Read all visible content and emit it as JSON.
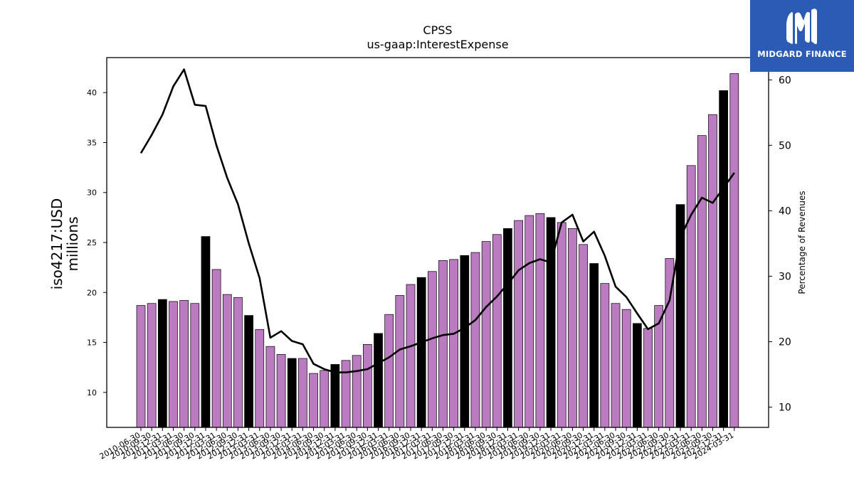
{
  "header": {
    "title": "CPSS",
    "subtitle": "us-gaap:InterestExpense"
  },
  "logo": {
    "text": "MIDGARD FINANCE",
    "icon": "midgard-m-logo-icon",
    "background": "#2b5bb5"
  },
  "colors": {
    "bar_default": "#bb7bc0",
    "bar_highlight": "#000000",
    "line": "#000000"
  },
  "chart_data": {
    "type": "bar",
    "title": "CPSS",
    "subtitle": "us-gaap:InterestExpense",
    "ylabel": "iso4217:USD\nmillions",
    "y2label": "Percentage of Revenues",
    "ylim": [
      6.5,
      43.5
    ],
    "y2lim": [
      6.9,
      63.4
    ],
    "yticks": [
      10,
      15,
      20,
      25,
      30,
      35,
      40
    ],
    "y2ticks": [
      10,
      20,
      30,
      40,
      50,
      60
    ],
    "categories": [
      "2010-06-30",
      "2010-09-30",
      "2010-12-31",
      "2011-03-31",
      "2011-06-30",
      "2011-09-30",
      "2011-12-31",
      "2012-03-31",
      "2012-06-30",
      "2012-09-30",
      "2012-12-31",
      "2013-03-31",
      "2013-06-30",
      "2013-09-30",
      "2013-12-31",
      "2014-03-31",
      "2014-06-30",
      "2014-09-30",
      "2014-12-31",
      "2015-03-31",
      "2015-06-30",
      "2015-09-30",
      "2015-12-31",
      "2016-03-31",
      "2016-06-30",
      "2016-09-30",
      "2016-12-31",
      "2017-03-31",
      "2017-06-30",
      "2017-09-30",
      "2017-12-31",
      "2018-03-31",
      "2018-06-30",
      "2018-09-30",
      "2018-12-31",
      "2019-03-31",
      "2019-06-30",
      "2019-09-30",
      "2019-12-31",
      "2020-03-31",
      "2020-06-30",
      "2020-09-30",
      "2020-12-31",
      "2021-03-31",
      "2021-06-30",
      "2021-09-30",
      "2021-12-31",
      "2022-03-31",
      "2022-06-30",
      "2022-09-30",
      "2022-12-31",
      "2023-03-31",
      "2023-06-30",
      "2023-09-30",
      "2023-12-31",
      "2024-03-31"
    ],
    "series": [
      {
        "type": "bar",
        "values": [
          18.7,
          18.9,
          19.3,
          19.1,
          19.2,
          18.9,
          25.6,
          22.3,
          19.8,
          19.5,
          17.7,
          16.3,
          14.6,
          13.8,
          13.4,
          13.4,
          11.9,
          12.2,
          12.8,
          13.2,
          13.7,
          14.8,
          15.9,
          17.8,
          19.7,
          20.8,
          21.5,
          22.1,
          23.2,
          23.3,
          23.7,
          24.0,
          25.1,
          25.8,
          26.4,
          27.2,
          27.7,
          27.9,
          27.5,
          27.0,
          26.4,
          24.8,
          22.9,
          20.9,
          18.9,
          18.3,
          16.9,
          16.4,
          18.7,
          23.4,
          28.8,
          32.7,
          35.7,
          37.8,
          40.2,
          41.9
        ],
        "highlight": [
          false,
          false,
          true,
          false,
          false,
          false,
          true,
          false,
          false,
          false,
          true,
          false,
          false,
          false,
          true,
          false,
          false,
          false,
          true,
          false,
          false,
          false,
          true,
          false,
          false,
          false,
          true,
          false,
          false,
          false,
          true,
          false,
          false,
          false,
          true,
          false,
          false,
          false,
          true,
          false,
          false,
          false,
          true,
          false,
          false,
          false,
          true,
          false,
          false,
          false,
          true,
          false,
          false,
          false,
          true,
          false
        ]
      },
      {
        "type": "line",
        "axis": "right",
        "values": [
          48.8,
          51.6,
          54.7,
          59.0,
          61.6,
          56.2,
          56.0,
          50.0,
          45.0,
          41.0,
          35.0,
          29.7,
          20.6,
          21.6,
          20.1,
          19.6,
          16.6,
          15.8,
          15.3,
          15.3,
          15.5,
          15.8,
          16.7,
          17.6,
          18.8,
          19.3,
          19.9,
          20.5,
          21.0,
          21.2,
          22.1,
          23.3,
          25.3,
          26.9,
          28.8,
          30.9,
          32.0,
          32.6,
          32.1,
          38.2,
          39.4,
          35.3,
          36.8,
          33.1,
          28.4,
          26.8,
          24.3,
          21.9,
          22.8,
          26.3,
          35.9,
          39.4,
          42.0,
          41.2,
          43.5,
          45.8
        ]
      }
    ]
  }
}
